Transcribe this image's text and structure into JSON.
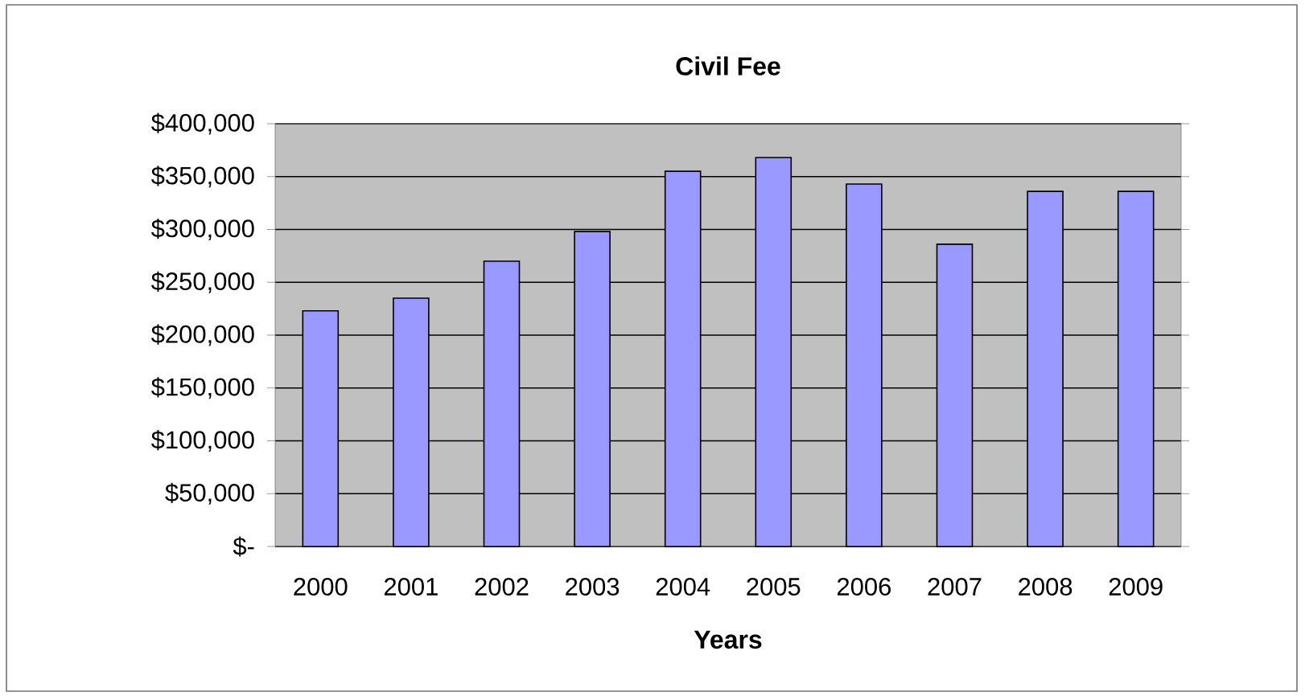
{
  "chart_data": {
    "type": "bar",
    "title": "Civil Fee",
    "xlabel": "Years",
    "categories": [
      "2000",
      "2001",
      "2002",
      "2003",
      "2004",
      "2005",
      "2006",
      "2007",
      "2008",
      "2009"
    ],
    "values": [
      223000,
      235000,
      270000,
      298000,
      355000,
      368000,
      343000,
      286000,
      336000,
      336000
    ],
    "color": "#9999ff",
    "ylim": [
      0,
      400000
    ],
    "yticks": [
      {
        "value": 0,
        "label": "$-"
      },
      {
        "value": 50000,
        "label": "$50,000"
      },
      {
        "value": 100000,
        "label": "$100,000"
      },
      {
        "value": 150000,
        "label": "$150,000"
      },
      {
        "value": 200000,
        "label": "$200,000"
      },
      {
        "value": 250000,
        "label": "$250,000"
      },
      {
        "value": 300000,
        "label": "$300,000"
      },
      {
        "value": 350000,
        "label": "$350,000"
      },
      {
        "value": 400000,
        "label": "$400,000"
      }
    ],
    "grid": "y"
  }
}
